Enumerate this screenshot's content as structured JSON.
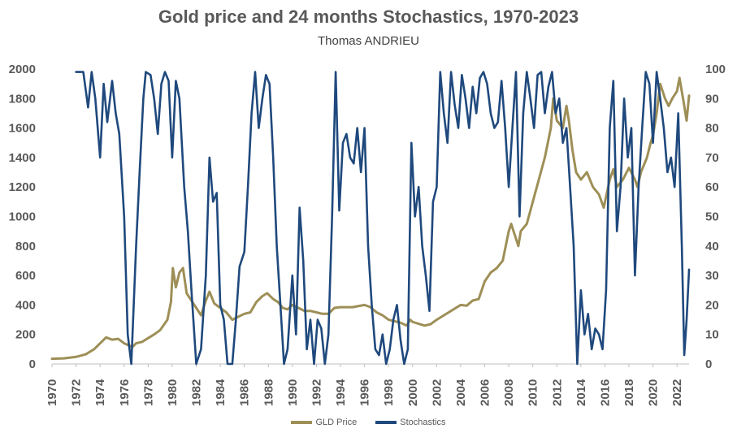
{
  "chart_data": {
    "type": "line",
    "title": "Gold price and 24 months Stochastics, 1970-2023",
    "subtitle": "Thomas ANDRIEU",
    "x_ticks": [
      "1970",
      "1972",
      "1974",
      "1976",
      "1978",
      "1980",
      "1982",
      "1984",
      "1986",
      "1988",
      "1990",
      "1992",
      "1994",
      "1996",
      "1998",
      "2000",
      "2002",
      "2004",
      "2006",
      "2008",
      "2010",
      "2012",
      "2014",
      "2016",
      "2018",
      "2020",
      "2022"
    ],
    "xlim": [
      1970,
      2023
    ],
    "y_left": {
      "ylim": [
        0,
        2000
      ],
      "ticks": [
        "0",
        "200",
        "400",
        "600",
        "800",
        "1000",
        "1200",
        "1400",
        "1600",
        "1800",
        "2000"
      ]
    },
    "y_right": {
      "ylim": [
        0,
        100
      ],
      "ticks": [
        "0",
        "10",
        "20",
        "30",
        "40",
        "50",
        "60",
        "70",
        "80",
        "90",
        "100"
      ]
    },
    "grid": false,
    "legend_position": "bottom",
    "series": [
      {
        "name": "GLD Price",
        "axis": "left",
        "color": "#9E8F57",
        "points": [
          [
            1970,
            35
          ],
          [
            1971,
            38
          ],
          [
            1972,
            48
          ],
          [
            1972.8,
            65
          ],
          [
            1973.5,
            100
          ],
          [
            1974,
            140
          ],
          [
            1974.5,
            180
          ],
          [
            1975,
            165
          ],
          [
            1975.5,
            170
          ],
          [
            1976,
            140
          ],
          [
            1976.7,
            115
          ],
          [
            1977,
            140
          ],
          [
            1977.5,
            150
          ],
          [
            1978,
            175
          ],
          [
            1978.5,
            200
          ],
          [
            1979,
            230
          ],
          [
            1979.6,
            300
          ],
          [
            1979.9,
            420
          ],
          [
            1980.05,
            650
          ],
          [
            1980.3,
            520
          ],
          [
            1980.6,
            620
          ],
          [
            1980.9,
            650
          ],
          [
            1981.2,
            480
          ],
          [
            1981.6,
            430
          ],
          [
            1982,
            380
          ],
          [
            1982.4,
            330
          ],
          [
            1982.8,
            430
          ],
          [
            1983.1,
            490
          ],
          [
            1983.5,
            410
          ],
          [
            1984,
            380
          ],
          [
            1984.5,
            350
          ],
          [
            1985,
            300
          ],
          [
            1985.5,
            320
          ],
          [
            1986,
            340
          ],
          [
            1986.5,
            350
          ],
          [
            1987,
            420
          ],
          [
            1987.5,
            460
          ],
          [
            1987.9,
            480
          ],
          [
            1988.4,
            440
          ],
          [
            1988.8,
            420
          ],
          [
            1989.2,
            380
          ],
          [
            1989.6,
            370
          ],
          [
            1990,
            400
          ],
          [
            1990.5,
            380
          ],
          [
            1991,
            360
          ],
          [
            1991.5,
            360
          ],
          [
            1992,
            350
          ],
          [
            1992.5,
            340
          ],
          [
            1993,
            340
          ],
          [
            1993.5,
            380
          ],
          [
            1994,
            385
          ],
          [
            1995,
            385
          ],
          [
            1996,
            400
          ],
          [
            1996.5,
            385
          ],
          [
            1997,
            350
          ],
          [
            1997.5,
            330
          ],
          [
            1998,
            300
          ],
          [
            1998.5,
            290
          ],
          [
            1999,
            280
          ],
          [
            1999.5,
            260
          ],
          [
            1999.8,
            300
          ],
          [
            2000,
            285
          ],
          [
            2001,
            260
          ],
          [
            2001.5,
            270
          ],
          [
            2002,
            300
          ],
          [
            2003,
            350
          ],
          [
            2004,
            400
          ],
          [
            2004.5,
            395
          ],
          [
            2005,
            430
          ],
          [
            2005.5,
            440
          ],
          [
            2006,
            560
          ],
          [
            2006.5,
            620
          ],
          [
            2007,
            650
          ],
          [
            2007.5,
            700
          ],
          [
            2008,
            900
          ],
          [
            2008.2,
            950
          ],
          [
            2008.8,
            800
          ],
          [
            2009,
            900
          ],
          [
            2009.5,
            950
          ],
          [
            2010,
            1100
          ],
          [
            2010.5,
            1250
          ],
          [
            2011,
            1400
          ],
          [
            2011.5,
            1600
          ],
          [
            2011.7,
            1800
          ],
          [
            2012,
            1650
          ],
          [
            2012.5,
            1600
          ],
          [
            2012.8,
            1750
          ],
          [
            2013,
            1650
          ],
          [
            2013.3,
            1450
          ],
          [
            2013.6,
            1300
          ],
          [
            2014,
            1250
          ],
          [
            2014.5,
            1300
          ],
          [
            2015,
            1200
          ],
          [
            2015.5,
            1150
          ],
          [
            2015.9,
            1060
          ],
          [
            2016.4,
            1250
          ],
          [
            2016.7,
            1320
          ],
          [
            2017,
            1200
          ],
          [
            2017.5,
            1250
          ],
          [
            2018,
            1330
          ],
          [
            2018.5,
            1250
          ],
          [
            2018.7,
            1200
          ],
          [
            2019,
            1300
          ],
          [
            2019.5,
            1400
          ],
          [
            2019.8,
            1500
          ],
          [
            2020,
            1550
          ],
          [
            2020.3,
            1700
          ],
          [
            2020.6,
            1900
          ],
          [
            2021,
            1800
          ],
          [
            2021.3,
            1750
          ],
          [
            2021.6,
            1800
          ],
          [
            2022,
            1850
          ],
          [
            2022.2,
            1940
          ],
          [
            2022.5,
            1800
          ],
          [
            2022.8,
            1650
          ],
          [
            2023,
            1820
          ]
        ]
      },
      {
        "name": "Stochastics",
        "axis": "right",
        "color": "#1F497D",
        "points": [
          [
            1972,
            99
          ],
          [
            1972.6,
            99
          ],
          [
            1973,
            87
          ],
          [
            1973.3,
            99
          ],
          [
            1973.6,
            90
          ],
          [
            1974,
            70
          ],
          [
            1974.3,
            95
          ],
          [
            1974.6,
            82
          ],
          [
            1975,
            96
          ],
          [
            1975.3,
            85
          ],
          [
            1975.6,
            78
          ],
          [
            1976,
            50
          ],
          [
            1976.3,
            10
          ],
          [
            1976.6,
            0
          ],
          [
            1977,
            40
          ],
          [
            1977.3,
            66
          ],
          [
            1977.6,
            90
          ],
          [
            1977.8,
            99
          ],
          [
            1978.2,
            98
          ],
          [
            1978.5,
            90
          ],
          [
            1978.8,
            78
          ],
          [
            1979.1,
            95
          ],
          [
            1979.4,
            99
          ],
          [
            1979.7,
            96
          ],
          [
            1980,
            70
          ],
          [
            1980.3,
            96
          ],
          [
            1980.6,
            90
          ],
          [
            1981,
            60
          ],
          [
            1981.3,
            45
          ],
          [
            1981.6,
            25
          ],
          [
            1982,
            0
          ],
          [
            1982.4,
            5
          ],
          [
            1982.8,
            30
          ],
          [
            1983.1,
            70
          ],
          [
            1983.4,
            55
          ],
          [
            1983.7,
            58
          ],
          [
            1984,
            20
          ],
          [
            1984.3,
            15
          ],
          [
            1984.6,
            0
          ],
          [
            1985,
            0
          ],
          [
            1985.3,
            15
          ],
          [
            1985.6,
            33
          ],
          [
            1986,
            38
          ],
          [
            1986.3,
            60
          ],
          [
            1986.6,
            85
          ],
          [
            1986.9,
            99
          ],
          [
            1987.2,
            80
          ],
          [
            1987.5,
            90
          ],
          [
            1987.8,
            98
          ],
          [
            1988.1,
            95
          ],
          [
            1988.4,
            70
          ],
          [
            1988.7,
            40
          ],
          [
            1989,
            20
          ],
          [
            1989.3,
            0
          ],
          [
            1989.6,
            5
          ],
          [
            1990,
            30
          ],
          [
            1990.3,
            10
          ],
          [
            1990.6,
            53
          ],
          [
            1990.9,
            35
          ],
          [
            1991.2,
            5
          ],
          [
            1991.5,
            15
          ],
          [
            1991.8,
            0
          ],
          [
            1992.1,
            15
          ],
          [
            1992.4,
            12
          ],
          [
            1992.7,
            0
          ],
          [
            1993,
            10
          ],
          [
            1993.3,
            50
          ],
          [
            1993.6,
            99
          ],
          [
            1993.9,
            52
          ],
          [
            1994.2,
            75
          ],
          [
            1994.5,
            78
          ],
          [
            1994.8,
            70
          ],
          [
            1995.1,
            68
          ],
          [
            1995.4,
            80
          ],
          [
            1995.7,
            65
          ],
          [
            1996,
            80
          ],
          [
            1996.3,
            40
          ],
          [
            1996.6,
            20
          ],
          [
            1996.9,
            5
          ],
          [
            1997.2,
            3
          ],
          [
            1997.5,
            10
          ],
          [
            1997.8,
            0
          ],
          [
            1998.1,
            5
          ],
          [
            1998.4,
            15
          ],
          [
            1998.7,
            20
          ],
          [
            1999,
            8
          ],
          [
            1999.3,
            0
          ],
          [
            1999.6,
            5
          ],
          [
            1999.9,
            75
          ],
          [
            2000.2,
            50
          ],
          [
            2000.5,
            60
          ],
          [
            2000.8,
            40
          ],
          [
            2001.1,
            30
          ],
          [
            2001.4,
            18
          ],
          [
            2001.7,
            55
          ],
          [
            2002,
            60
          ],
          [
            2002.3,
            99
          ],
          [
            2002.6,
            85
          ],
          [
            2002.9,
            75
          ],
          [
            2003.2,
            99
          ],
          [
            2003.5,
            88
          ],
          [
            2003.8,
            80
          ],
          [
            2004.1,
            98
          ],
          [
            2004.4,
            90
          ],
          [
            2004.7,
            80
          ],
          [
            2005,
            94
          ],
          [
            2005.3,
            85
          ],
          [
            2005.6,
            97
          ],
          [
            2005.9,
            99
          ],
          [
            2006.2,
            95
          ],
          [
            2006.5,
            85
          ],
          [
            2006.8,
            80
          ],
          [
            2007.1,
            82
          ],
          [
            2007.4,
            96
          ],
          [
            2007.7,
            80
          ],
          [
            2008,
            60
          ],
          [
            2008.3,
            80
          ],
          [
            2008.6,
            99
          ],
          [
            2008.9,
            50
          ],
          [
            2009.2,
            85
          ],
          [
            2009.5,
            99
          ],
          [
            2009.8,
            90
          ],
          [
            2010.1,
            80
          ],
          [
            2010.4,
            98
          ],
          [
            2010.7,
            99
          ],
          [
            2011,
            85
          ],
          [
            2011.3,
            94
          ],
          [
            2011.6,
            99
          ],
          [
            2011.9,
            85
          ],
          [
            2012.2,
            90
          ],
          [
            2012.5,
            75
          ],
          [
            2012.8,
            80
          ],
          [
            2013.1,
            60
          ],
          [
            2013.4,
            40
          ],
          [
            2013.7,
            0
          ],
          [
            2014,
            25
          ],
          [
            2014.3,
            10
          ],
          [
            2014.6,
            17
          ],
          [
            2014.9,
            5
          ],
          [
            2015.2,
            12
          ],
          [
            2015.5,
            10
          ],
          [
            2015.8,
            5
          ],
          [
            2016.1,
            25
          ],
          [
            2016.4,
            80
          ],
          [
            2016.7,
            96
          ],
          [
            2017,
            45
          ],
          [
            2017.3,
            60
          ],
          [
            2017.6,
            90
          ],
          [
            2017.9,
            70
          ],
          [
            2018.2,
            80
          ],
          [
            2018.5,
            30
          ],
          [
            2018.8,
            60
          ],
          [
            2019.1,
            80
          ],
          [
            2019.4,
            99
          ],
          [
            2019.7,
            95
          ],
          [
            2020,
            75
          ],
          [
            2020.3,
            99
          ],
          [
            2020.6,
            90
          ],
          [
            2020.9,
            80
          ],
          [
            2021.2,
            65
          ],
          [
            2021.5,
            70
          ],
          [
            2021.8,
            60
          ],
          [
            2022.1,
            85
          ],
          [
            2022.4,
            40
          ],
          [
            2022.6,
            3
          ],
          [
            2022.8,
            15
          ],
          [
            2023,
            32
          ]
        ]
      }
    ]
  }
}
